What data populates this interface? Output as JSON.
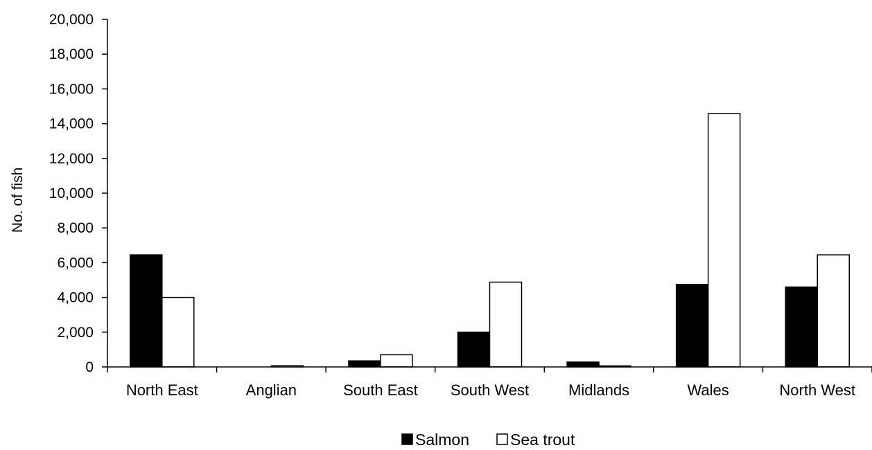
{
  "chart_data": {
    "type": "bar",
    "title": "",
    "xlabel": "",
    "ylabel": "No. of fish",
    "ylim": [
      0,
      20000
    ],
    "yticks": [
      "0",
      "2,000",
      "4,000",
      "6,000",
      "8,000",
      "10,000",
      "12,000",
      "14,000",
      "16,000",
      "18,000",
      "20,000"
    ],
    "categories": [
      "North East",
      "Anglian",
      "South East",
      "South West",
      "Midlands",
      "Wales",
      "North West"
    ],
    "series": [
      {
        "name": "Salmon",
        "color": "#000000",
        "values": [
          6450,
          0,
          350,
          2000,
          280,
          4750,
          4600
        ]
      },
      {
        "name": "Sea trout",
        "color": "#ffffff",
        "values": [
          4000,
          70,
          700,
          4880,
          60,
          14580,
          6450
        ]
      }
    ],
    "grid": false,
    "legend_position": "bottom"
  }
}
